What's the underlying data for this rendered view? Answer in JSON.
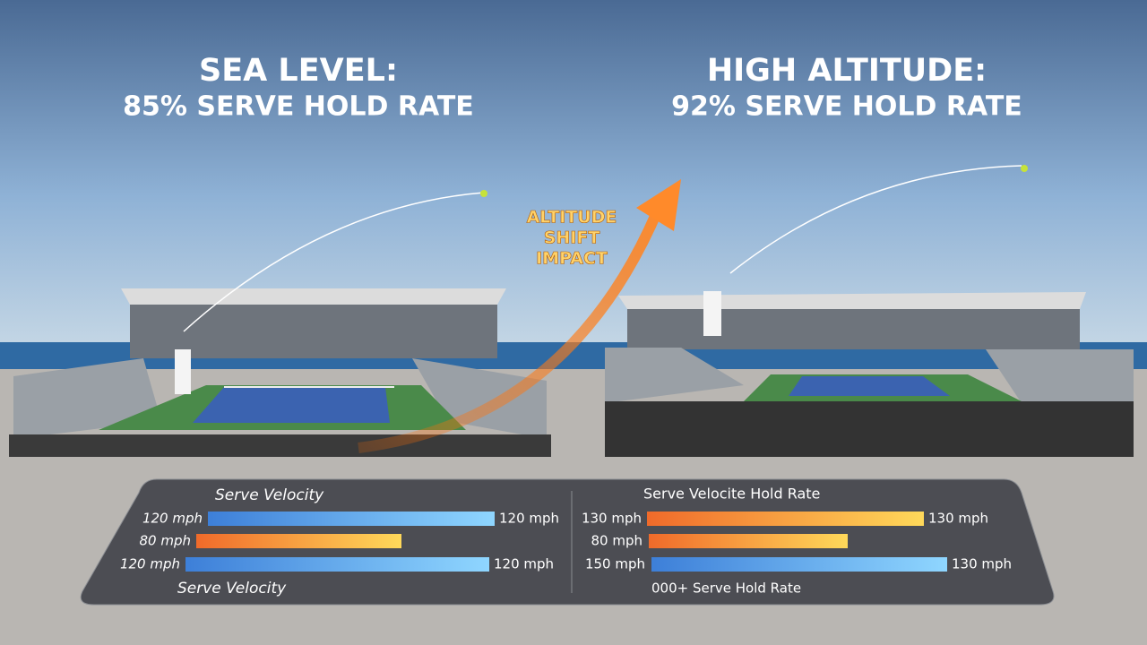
{
  "left_scene": {
    "title": "SEA LEVEL:",
    "subtitle": "85% SERVE HOLD RATE"
  },
  "right_scene": {
    "title": "HIGH ALTITUDE:",
    "subtitle": "92% SERVE HOLD RATE"
  },
  "arrow_label": [
    "ALTITUDE",
    "SHIFT",
    "IMPACT"
  ],
  "left_panel": {
    "title": "Serve Velocity",
    "rows": [
      {
        "label": "120 mph",
        "end_label": "120 mph"
      },
      {
        "label": "80 mph"
      },
      {
        "label": "120 mph",
        "end_label": "120 mph"
      }
    ],
    "footer": "Serve Velocity"
  },
  "right_panel": {
    "title": "Serve Velocite Hold Rate",
    "rows": [
      {
        "label": "130 mph",
        "end_label": "130 mph"
      },
      {
        "label": "80 mph"
      },
      {
        "label": "150 mph",
        "end_label": "130 mph"
      }
    ],
    "footer": "000+ Serve Hold Rate"
  }
}
